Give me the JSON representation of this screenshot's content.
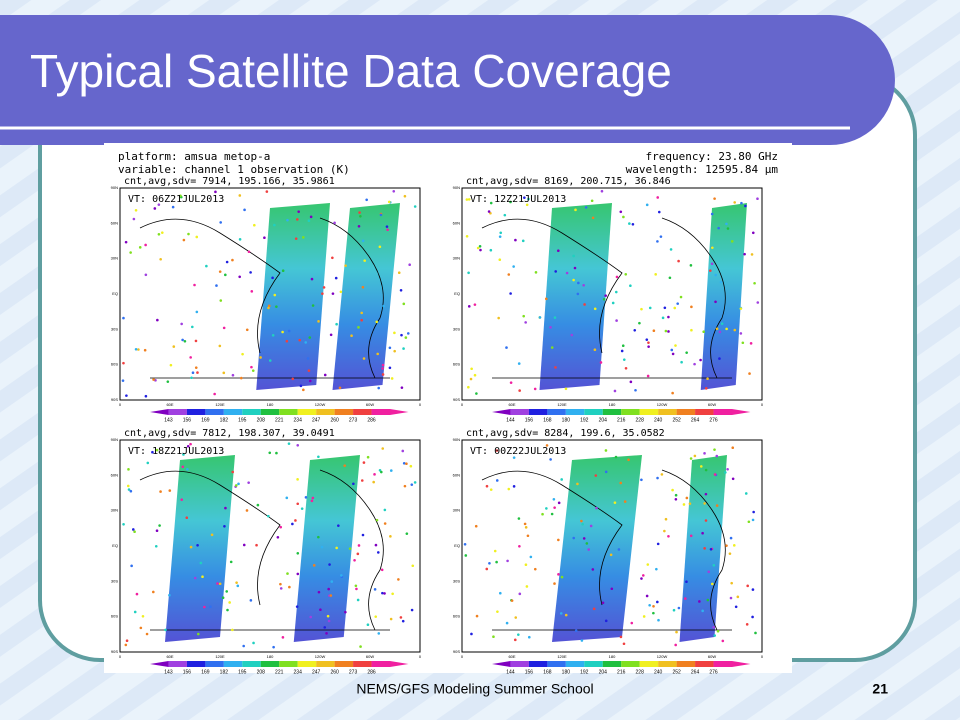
{
  "slide": {
    "title": "Typical Satellite Data Coverage",
    "footer": "NEMS/GFS Modeling Summer School",
    "page_number": "21"
  },
  "figure": {
    "platform": "platform:  amsua metop-a",
    "variable": "variable:  channel 1 observation (K)",
    "frequency": "frequency: 23.80 GHz",
    "wavelength": "wavelength: 12595.84 μm",
    "lat_labels": [
      "90N",
      "60N",
      "30N",
      "EQ",
      "30S",
      "60S",
      "90S"
    ],
    "lon_labels": [
      "0",
      "60E",
      "120E",
      "180",
      "120W",
      "60W",
      "0"
    ],
    "panels": [
      {
        "stats": "cnt,avg,sdv= 7914, 195.166, 35.9861",
        "time": "VT: 06Z21JUL2013",
        "colorbar": [
          143,
          156,
          169,
          182,
          195,
          208,
          221,
          234,
          247,
          260,
          273,
          286
        ]
      },
      {
        "stats": "cnt,avg,sdv= 8169, 200.715, 36.846",
        "time": "VT: 12Z21JUL2013",
        "colorbar": [
          144,
          156,
          168,
          180,
          192,
          204,
          216,
          228,
          240,
          252,
          264,
          276
        ]
      },
      {
        "stats": "cnt,avg,sdv= 7812, 198.307, 39.0491",
        "time": "VT: 18Z21JUL2013",
        "colorbar": [
          143,
          156,
          169,
          182,
          195,
          208,
          221,
          234,
          247,
          260,
          273,
          286
        ]
      },
      {
        "stats": "cnt,avg,sdv= 8284, 199.6, 35.0582",
        "time": "VT: 00Z22JUL2013",
        "colorbar": [
          144,
          156,
          168,
          180,
          192,
          204,
          216,
          228,
          240,
          252,
          264,
          276
        ]
      }
    ]
  }
}
